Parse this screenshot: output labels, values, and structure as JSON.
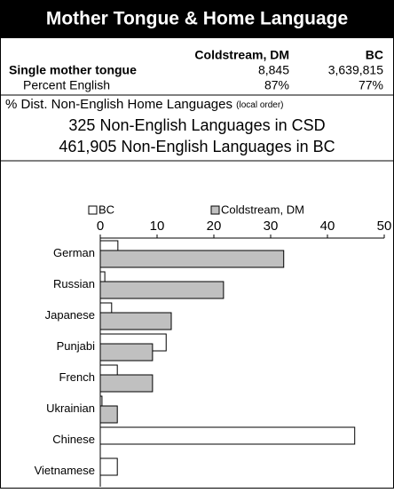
{
  "header": {
    "title": "Mother Tongue & Home Language"
  },
  "table": {
    "columns": [
      "Coldstream, DM",
      "BC"
    ],
    "rows": [
      [
        "Single mother tongue",
        "8,845",
        "3,639,815"
      ],
      [
        "Percent English",
        "87%",
        "77%"
      ]
    ]
  },
  "summary": {
    "title": "% Dist. Non-English Home Languages",
    "note": "(local order)",
    "lines": [
      "325 Non-English Languages in CSD",
      "461,905 Non-English Languages in BC"
    ]
  },
  "chart_data": {
    "type": "bar",
    "orientation": "horizontal",
    "categories": [
      "German",
      "Russian",
      "Japanese",
      "Punjabi",
      "French",
      "Ukrainian",
      "Chinese",
      "Vietnamese"
    ],
    "series": [
      {
        "name": "BC",
        "color": "#ffffff",
        "values": [
          3.1,
          0.8,
          2.0,
          11.6,
          3.0,
          0.3,
          44.8,
          3.0
        ]
      },
      {
        "name": "Coldstream, DM",
        "color": "#c0c0c0",
        "values": [
          32.3,
          21.7,
          12.5,
          9.2,
          9.2,
          3.0,
          0,
          0
        ]
      }
    ],
    "xlim": [
      0,
      50
    ],
    "xticks": [
      0,
      10,
      20,
      30,
      40,
      50
    ]
  }
}
